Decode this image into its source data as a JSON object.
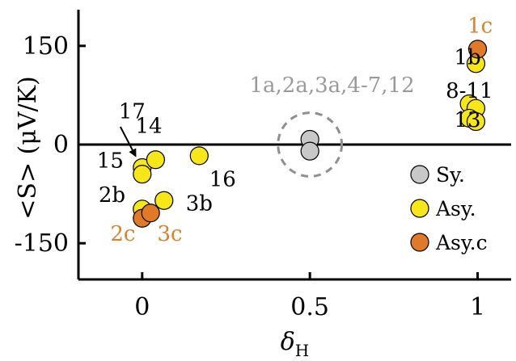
{
  "chart_data": {
    "type": "scatter",
    "xlabel": "δ",
    "xlabel_subscript": "H",
    "ylabel": "<S> (μV/K)",
    "xlim": [
      -0.19,
      1.1
    ],
    "ylim": [
      -205,
      205
    ],
    "x_ticks": [
      0,
      0.5,
      1
    ],
    "x_tick_labels": [
      "0",
      "0.5",
      "1"
    ],
    "y_ticks": [
      -150,
      0,
      150
    ],
    "y_tick_labels": [
      "-150",
      "0",
      "150"
    ],
    "zero_line": true,
    "grid": false,
    "legend_position": "bottom-right",
    "colors": {
      "Sy.": "#c8c8c8",
      "Asy.": "#f6e61a",
      "Asy.c": "#e07a28",
      "orange_text": "#d9822b",
      "gray_text": "#9a9a9a",
      "circle_dash": "#8f8f8f"
    },
    "series": [
      {
        "name": "Sy.",
        "points": [
          [
            0.5,
            8
          ],
          [
            0.5,
            -10
          ]
        ]
      },
      {
        "name": "Asy.",
        "points": [
          [
            0.995,
            123
          ],
          [
            0.975,
            62
          ],
          [
            0.995,
            55
          ],
          [
            0.975,
            40
          ],
          [
            0.995,
            35
          ],
          [
            0.0,
            -35
          ],
          [
            0.0,
            -45
          ],
          [
            0.04,
            -23
          ],
          [
            0.17,
            -17
          ],
          [
            0.0,
            -98
          ],
          [
            0.065,
            -85
          ]
        ]
      },
      {
        "name": "Asy.c",
        "points": [
          [
            1.0,
            145
          ],
          [
            0.0,
            -112
          ],
          [
            0.025,
            -104
          ]
        ]
      }
    ],
    "annotations": [
      {
        "text": "1c",
        "x": 0.97,
        "y": 170,
        "color": "orange"
      },
      {
        "text": "1b",
        "x": 0.93,
        "y": 122,
        "color": "black"
      },
      {
        "text": "8-11",
        "x": 0.905,
        "y": 71,
        "color": "black"
      },
      {
        "text": "13",
        "x": 0.93,
        "y": 27,
        "color": "black"
      },
      {
        "text": "1a,2a,3a,4-7,12",
        "x": 0.32,
        "y": 80,
        "color": "gray"
      },
      {
        "text": "17",
        "x": -0.07,
        "y": 40,
        "color": "black"
      },
      {
        "text": "14",
        "x": -0.02,
        "y": 18,
        "color": "black"
      },
      {
        "text": "15",
        "x": -0.135,
        "y": -35,
        "color": "black"
      },
      {
        "text": "16",
        "x": 0.2,
        "y": -63,
        "color": "black"
      },
      {
        "text": "2b",
        "x": -0.13,
        "y": -87,
        "color": "black"
      },
      {
        "text": "3b",
        "x": 0.13,
        "y": -100,
        "color": "black"
      },
      {
        "text": "2c",
        "x": -0.095,
        "y": -146,
        "color": "orange"
      },
      {
        "text": "3c",
        "x": 0.045,
        "y": -146,
        "color": "orange"
      }
    ],
    "arrow": {
      "from": [
        -0.065,
        27
      ],
      "to": [
        -0.02,
        -17
      ]
    },
    "dashed_circle": {
      "cx": 0.5,
      "cy": 0,
      "r": 0.095
    }
  }
}
